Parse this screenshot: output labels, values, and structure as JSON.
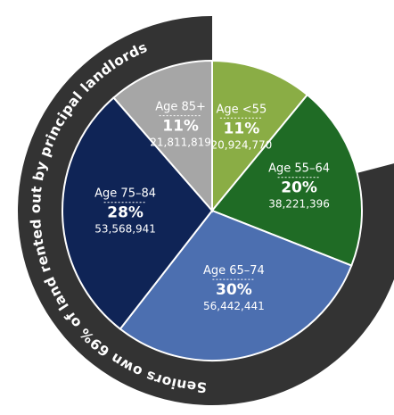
{
  "chart_data": {
    "type": "pie",
    "title": "Seniors own 69% of land rented out by principal landlords",
    "slices": [
      {
        "label": "Age <55",
        "percent": "11%",
        "value": 20924770,
        "value_label": "20,924,770",
        "color": "#8aad45"
      },
      {
        "label": "Age 55–64",
        "percent": "20%",
        "value": 38221396,
        "value_label": "38,221,396",
        "color": "#1f6b25"
      },
      {
        "label": "Age 65–74",
        "percent": "30%",
        "value": 56442441,
        "value_label": "56,442,441",
        "color": "#4c6fb0"
      },
      {
        "label": "Age 75–84",
        "percent": "28%",
        "value": 53568941,
        "value_label": "53,568,941",
        "color": "#0f2456"
      },
      {
        "label": "Age 85+",
        "percent": "11%",
        "value": 21811819,
        "value_label": "21,811,819",
        "color": "#a6a6a6"
      }
    ],
    "band_color": "#333333",
    "grid": false
  }
}
